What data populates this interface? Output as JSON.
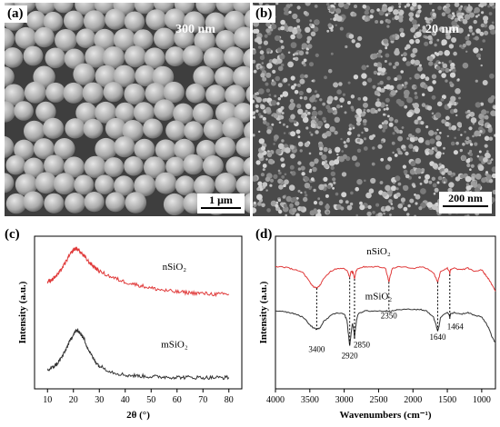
{
  "panels": {
    "a": {
      "label": "(a)",
      "size_text": "300 nm",
      "scalebar": "1 μm"
    },
    "b": {
      "label": "(b)",
      "size_text": "20 nm",
      "scalebar": "200 nm"
    },
    "c": {
      "label": "(c)"
    },
    "d": {
      "label": "(d)"
    }
  },
  "colors": {
    "red_series": "#e03a3a",
    "dark_series": "#333333"
  },
  "chart_data": [
    {
      "panel": "c",
      "type": "line",
      "xlabel": "2θ (°)",
      "ylabel": "Intensity (a.u.)",
      "xlim": [
        5,
        85
      ],
      "x_ticks": [
        10,
        20,
        30,
        40,
        50,
        60,
        70,
        80
      ],
      "series": [
        {
          "name": "nSiO₂",
          "color": "#e03a3a",
          "x": [
            10,
            12,
            14,
            16,
            18,
            20,
            21,
            22,
            24,
            26,
            28,
            30,
            35,
            40,
            45,
            50,
            55,
            60,
            65,
            70,
            75,
            80
          ],
          "y": [
            0.7,
            0.72,
            0.75,
            0.8,
            0.86,
            0.91,
            0.92,
            0.91,
            0.87,
            0.83,
            0.8,
            0.77,
            0.73,
            0.7,
            0.68,
            0.66,
            0.645,
            0.635,
            0.63,
            0.625,
            0.62,
            0.62
          ]
        },
        {
          "name": "mSiO₂",
          "color": "#333333",
          "x": [
            10,
            12,
            14,
            16,
            18,
            20,
            21,
            22,
            24,
            26,
            28,
            30,
            35,
            40,
            45,
            50,
            55,
            60,
            65,
            70,
            75,
            80
          ],
          "y": [
            0.12,
            0.14,
            0.17,
            0.22,
            0.29,
            0.36,
            0.38,
            0.38,
            0.33,
            0.25,
            0.19,
            0.15,
            0.11,
            0.09,
            0.085,
            0.08,
            0.078,
            0.076,
            0.075,
            0.074,
            0.074,
            0.074
          ]
        }
      ],
      "annotations": [
        "nSiO₂",
        "mSiO₂"
      ]
    },
    {
      "panel": "d",
      "type": "line",
      "xlabel": "Wavenumbers (cm⁻¹)",
      "ylabel": "Intensity (a.u.)",
      "xlim": [
        4000,
        800
      ],
      "x_ticks": [
        4000,
        3500,
        3000,
        2500,
        2000,
        1500,
        1000
      ],
      "peak_labels": [
        "3400",
        "2920",
        "2850",
        "2350",
        "1640",
        "1464"
      ],
      "peak_positions": [
        3400,
        2920,
        2850,
        2350,
        1640,
        1464
      ],
      "series": [
        {
          "name": "nSiO₂",
          "color": "#e03a3a",
          "x": [
            4000,
            3900,
            3800,
            3700,
            3600,
            3500,
            3450,
            3400,
            3350,
            3300,
            3200,
            3100,
            3000,
            2950,
            2920,
            2900,
            2870,
            2850,
            2830,
            2800,
            2700,
            2600,
            2500,
            2400,
            2370,
            2350,
            2330,
            2300,
            2200,
            2000,
            1900,
            1800,
            1700,
            1660,
            1640,
            1620,
            1600,
            1500,
            1470,
            1464,
            1455,
            1400,
            1300,
            1200,
            1100,
            1000,
            950,
            900,
            850,
            800
          ],
          "y": [
            0.8,
            0.8,
            0.79,
            0.78,
            0.76,
            0.7,
            0.67,
            0.66,
            0.68,
            0.72,
            0.77,
            0.79,
            0.79,
            0.77,
            0.73,
            0.77,
            0.76,
            0.72,
            0.77,
            0.79,
            0.8,
            0.8,
            0.8,
            0.79,
            0.74,
            0.7,
            0.74,
            0.79,
            0.8,
            0.79,
            0.8,
            0.79,
            0.76,
            0.72,
            0.7,
            0.73,
            0.77,
            0.79,
            0.77,
            0.75,
            0.78,
            0.79,
            0.78,
            0.79,
            0.77,
            0.78,
            0.75,
            0.72,
            0.68,
            0.64
          ]
        },
        {
          "name": "mSiO₂",
          "color": "#333333",
          "x": [
            4000,
            3900,
            3800,
            3700,
            3600,
            3500,
            3450,
            3400,
            3350,
            3300,
            3200,
            3100,
            3000,
            2960,
            2940,
            2920,
            2900,
            2880,
            2860,
            2850,
            2840,
            2820,
            2800,
            2700,
            2600,
            2500,
            2400,
            2350,
            2300,
            2200,
            2000,
            1900,
            1800,
            1700,
            1660,
            1640,
            1620,
            1600,
            1500,
            1470,
            1464,
            1455,
            1400,
            1300,
            1200,
            1100,
            1000,
            950,
            900,
            850,
            800
          ],
          "y": [
            0.51,
            0.51,
            0.5,
            0.49,
            0.47,
            0.42,
            0.4,
            0.39,
            0.4,
            0.44,
            0.48,
            0.5,
            0.49,
            0.45,
            0.36,
            0.28,
            0.36,
            0.43,
            0.38,
            0.33,
            0.38,
            0.45,
            0.49,
            0.51,
            0.51,
            0.51,
            0.51,
            0.51,
            0.51,
            0.52,
            0.52,
            0.52,
            0.51,
            0.47,
            0.41,
            0.38,
            0.41,
            0.47,
            0.5,
            0.48,
            0.46,
            0.49,
            0.5,
            0.49,
            0.5,
            0.48,
            0.47,
            0.44,
            0.4,
            0.34,
            0.3
          ]
        }
      ],
      "annotations": [
        "nSiO₂",
        "mSiO₂"
      ]
    }
  ]
}
